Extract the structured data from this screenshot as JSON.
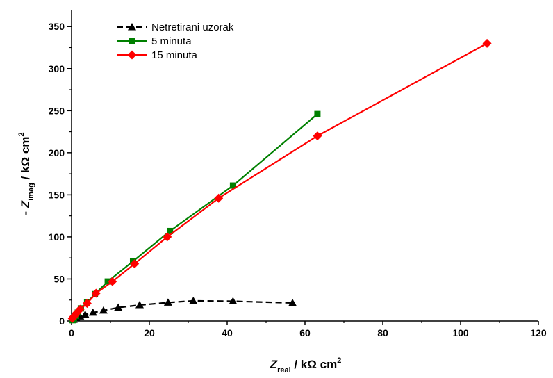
{
  "chart_data": {
    "type": "scatter",
    "xlabel": {
      "symbol": "Z",
      "subscript": "real",
      "unit": " / kΩ cm",
      "superscript": "2"
    },
    "ylabel": {
      "prefix": "- ",
      "symbol": "Z",
      "subscript": "imag",
      "unit": " / kΩ cm",
      "superscript": "2"
    },
    "xlim": [
      0,
      120
    ],
    "ylim": [
      0,
      370
    ],
    "xticks": [
      0,
      20,
      40,
      60,
      80,
      100,
      120
    ],
    "yticks": [
      0,
      50,
      100,
      150,
      200,
      250,
      300,
      350
    ],
    "grid": false,
    "legend_position": "top-left",
    "series": [
      {
        "name": "Netretirani uzorak",
        "color": "#000000",
        "marker": "triangle",
        "dashed": true,
        "points": [
          [
            0.5,
            1.5
          ],
          [
            1.2,
            3.5
          ],
          [
            2.2,
            5.5
          ],
          [
            3.5,
            7.5
          ],
          [
            5.5,
            10
          ],
          [
            8.2,
            12.5
          ],
          [
            12,
            16
          ],
          [
            17.5,
            19
          ],
          [
            24.8,
            22
          ],
          [
            31.3,
            24
          ],
          [
            41.5,
            23.5
          ],
          [
            56.8,
            21.5
          ]
        ]
      },
      {
        "name": "5 minuta",
        "color": "#008000",
        "marker": "square",
        "dashed": false,
        "points": [
          [
            0.3,
            1
          ],
          [
            0.6,
            3
          ],
          [
            1,
            6
          ],
          [
            1.6,
            10
          ],
          [
            2.4,
            15
          ],
          [
            4,
            22
          ],
          [
            6,
            32
          ],
          [
            9.3,
            47
          ],
          [
            15.8,
            71
          ],
          [
            25.3,
            107
          ],
          [
            41.5,
            161
          ],
          [
            63.2,
            246
          ]
        ]
      },
      {
        "name": "15 minuta",
        "color": "#ff0000",
        "marker": "diamond",
        "dashed": false,
        "points": [
          [
            0.2,
            3
          ],
          [
            0.5,
            5
          ],
          [
            0.9,
            7
          ],
          [
            1.4,
            10
          ],
          [
            2.2,
            14
          ],
          [
            4,
            21
          ],
          [
            6.3,
            33
          ],
          [
            10.5,
            47
          ],
          [
            16.2,
            68
          ],
          [
            24.6,
            100
          ],
          [
            37.8,
            146
          ],
          [
            63.2,
            220
          ],
          [
            106.8,
            330
          ]
        ]
      }
    ]
  }
}
